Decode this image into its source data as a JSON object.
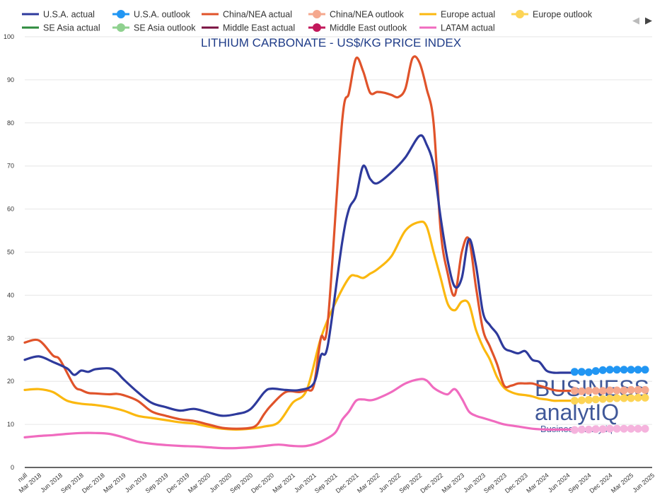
{
  "chart_data": {
    "type": "line",
    "title": "LITHIUM CARBONATE - US$/KG PRICE INDEX",
    "xlabel": "",
    "ylabel": "",
    "ylim": [
      0,
      100
    ],
    "y_ticks": [
      0,
      10,
      20,
      30,
      40,
      50,
      60,
      70,
      80,
      90,
      100
    ],
    "x_range": [
      0,
      88
    ],
    "x_tick_labels": [
      "null",
      "Mar 2018",
      "Jun 2018",
      "Sep 2018",
      "Dec 2018",
      "Mar 2019",
      "Jun 2019",
      "Sep 2019",
      "Dec 2019",
      "Mar 2020",
      "Jun 2020",
      "Sep 2020",
      "Dec 2020",
      "Mar 2021",
      "Jun 2021",
      "Sep 2021",
      "Dec 2021",
      "Mar 2022",
      "Jun 2022",
      "Sep 2022",
      "Dec 2022",
      "Mar 2023",
      "Jun 2023",
      "Sep 2023",
      "Dec 2023",
      "Mar 2024",
      "Jun 2024",
      "Sep 2024",
      "Dec 2024",
      "Mar 2025",
      "Jun 2025"
    ],
    "x_tick_positions": [
      0,
      2,
      5,
      8,
      11,
      14,
      17,
      20,
      23,
      26,
      29,
      32,
      35,
      38,
      41,
      44,
      47,
      50,
      53,
      56,
      59,
      62,
      65,
      68,
      71,
      74,
      77,
      80,
      83,
      86,
      89
    ],
    "legend_position": "top",
    "series": [
      {
        "name": "U.S.A. actual",
        "color": "#2e3a9c",
        "style": "line",
        "x": [
          0,
          2,
          4,
          6,
          7,
          8,
          9,
          10,
          12,
          13,
          14,
          16,
          18,
          20,
          22,
          24,
          26,
          28,
          30,
          32,
          34,
          35,
          37,
          39,
          41,
          42,
          43,
          45,
          46,
          47,
          48,
          49,
          50,
          52,
          54,
          56,
          57,
          58,
          59,
          60,
          61,
          62,
          63,
          64,
          65,
          66,
          67,
          68,
          69,
          70,
          71,
          72,
          73,
          74,
          75,
          76,
          77,
          78
        ],
        "values": [
          25,
          25.8,
          24.5,
          23,
          21.5,
          22.5,
          22.2,
          22.8,
          23,
          22.2,
          20.5,
          17.5,
          15,
          14,
          13.2,
          13.6,
          12.8,
          12,
          12.4,
          13.5,
          17.5,
          18.3,
          18,
          18,
          19.5,
          26,
          28.5,
          52,
          60,
          63,
          70,
          67,
          66,
          68.5,
          72,
          77,
          75,
          70,
          58,
          48,
          42,
          44,
          53,
          47,
          36,
          33,
          31,
          27.8,
          27,
          26.5,
          27,
          25,
          24.5,
          22.5,
          22,
          22,
          22,
          22
        ]
      },
      {
        "name": "U.S.A. outlook",
        "color": "#2196f3",
        "style": "dots",
        "x": [
          78,
          79,
          80,
          81,
          82,
          83,
          84,
          85,
          86,
          87,
          88
        ],
        "values": [
          22.2,
          22.2,
          22.1,
          22.4,
          22.6,
          22.7,
          22.7,
          22.7,
          22.7,
          22.7,
          22.7
        ]
      },
      {
        "name": "China/NEA actual",
        "color": "#e0532a",
        "style": "line",
        "x": [
          0,
          2,
          4,
          5,
          7,
          8,
          9,
          10,
          12,
          13,
          14,
          16,
          18,
          20,
          22,
          24,
          26,
          28,
          30,
          32,
          33,
          34,
          35,
          37,
          39,
          40,
          41,
          42,
          43,
          45,
          46,
          47,
          48,
          49,
          50,
          51,
          52,
          53,
          54,
          55,
          56,
          57,
          58,
          59,
          60,
          61,
          62,
          63,
          64,
          65,
          66,
          67,
          68,
          69,
          70,
          71,
          72,
          73,
          74,
          75,
          76,
          77,
          78
        ],
        "values": [
          29,
          29.5,
          26,
          25,
          19,
          18,
          17.3,
          17.2,
          17,
          17.1,
          16.8,
          15.5,
          13,
          12,
          11.2,
          10.8,
          10,
          9.2,
          9,
          9.2,
          10,
          12.5,
          14.5,
          17.5,
          17.5,
          18,
          19,
          30,
          34,
          80,
          87,
          95,
          92,
          87,
          87.2,
          87,
          86.5,
          86,
          88,
          95,
          94,
          88,
          80,
          55,
          45,
          40,
          50,
          53,
          42,
          32,
          28,
          24,
          19,
          19,
          19.5,
          19.5,
          19.5,
          19,
          18.5,
          18,
          17.8,
          17.8,
          17.8
        ]
      },
      {
        "name": "China/NEA outlook",
        "color": "#f5a88e",
        "style": "dots",
        "x": [
          78,
          79,
          80,
          81,
          82,
          83,
          84,
          85,
          86,
          87,
          88
        ],
        "values": [
          17.8,
          17.7,
          17.8,
          17.8,
          17.8,
          17.9,
          17.9,
          17.9,
          18,
          18,
          18
        ]
      },
      {
        "name": "Europe actual",
        "color": "#fbb80f",
        "style": "line",
        "x": [
          0,
          2,
          4,
          6,
          8,
          10,
          12,
          14,
          16,
          18,
          20,
          22,
          24,
          26,
          28,
          30,
          32,
          34,
          36,
          38,
          40,
          42,
          44,
          46,
          47,
          48,
          49,
          50,
          52,
          54,
          56,
          57,
          58,
          59,
          60,
          61,
          62,
          63,
          64,
          65,
          66,
          67,
          68,
          69,
          70,
          71,
          72,
          73,
          74,
          75,
          76,
          77,
          78
        ],
        "values": [
          18,
          18.2,
          17.5,
          15.5,
          14.8,
          14.5,
          14,
          13.2,
          12,
          11.5,
          11,
          10.5,
          10.2,
          9.5,
          9,
          8.8,
          9,
          9.5,
          10.5,
          15,
          18,
          30,
          38,
          44,
          44.5,
          44,
          45,
          46,
          49,
          55,
          57,
          56,
          50,
          44,
          38,
          36.5,
          38.5,
          38,
          32,
          28,
          25,
          21,
          18.5,
          17.5,
          17,
          16.8,
          16.5,
          16,
          15.8,
          15.5,
          15.5,
          15.5,
          15.5
        ]
      },
      {
        "name": "Europe outlook",
        "color": "#fdd455",
        "style": "dots",
        "x": [
          78,
          79,
          80,
          81,
          82,
          83,
          84,
          85,
          86,
          87,
          88
        ],
        "values": [
          15.5,
          15.6,
          15.7,
          15.8,
          15.9,
          16,
          16.1,
          16.1,
          16.1,
          16.2,
          16.2
        ]
      },
      {
        "name": "SE Asia actual",
        "color": "#2e8b3e",
        "style": "line",
        "x": [],
        "values": []
      },
      {
        "name": "SE Asia outlook",
        "color": "#8fd18f",
        "style": "dots",
        "x": [],
        "values": []
      },
      {
        "name": "Middle East actual",
        "color": "#7a1040",
        "style": "line",
        "x": [],
        "values": []
      },
      {
        "name": "Middle East outlook",
        "color": "#c2185b",
        "style": "dots",
        "x": [],
        "values": []
      },
      {
        "name": "LATAM actual",
        "color": "#f06bbf",
        "style": "line",
        "x": [
          0,
          2,
          4,
          6,
          8,
          10,
          12,
          14,
          16,
          18,
          20,
          22,
          24,
          26,
          28,
          30,
          32,
          34,
          36,
          38,
          40,
          42,
          44,
          45,
          46,
          47,
          48,
          49,
          50,
          52,
          54,
          56,
          57,
          58,
          59,
          60,
          61,
          62,
          63,
          64,
          65,
          66,
          67,
          68,
          70,
          72,
          74,
          76,
          78
        ],
        "values": [
          7,
          7.3,
          7.5,
          7.8,
          8,
          8,
          7.8,
          7,
          6,
          5.5,
          5.2,
          5,
          4.9,
          4.7,
          4.5,
          4.5,
          4.7,
          5,
          5.3,
          5,
          5,
          6,
          8,
          11,
          13,
          15.5,
          15.8,
          15.6,
          16,
          17.5,
          19.5,
          20.5,
          20.2,
          18.5,
          17.5,
          17,
          18.2,
          16,
          13,
          12,
          11.5,
          11,
          10.5,
          10,
          9.5,
          9,
          8.8,
          8.8,
          8.8
        ]
      },
      {
        "name": "LATAM outlook",
        "color": "#f5b3dd",
        "style": "dots",
        "legend": false,
        "x": [
          78,
          79,
          80,
          81,
          82,
          83,
          84,
          85,
          86,
          87,
          88
        ],
        "values": [
          8.7,
          8.8,
          8.8,
          8.9,
          8.9,
          9,
          9,
          9,
          9,
          9,
          9
        ]
      }
    ]
  },
  "watermark": {
    "line1": "BUSINESS",
    "line2": "analytIQ",
    "line3": "Business Analytiq"
  },
  "legend_nav": {
    "prev": "◀",
    "next": "▶"
  }
}
